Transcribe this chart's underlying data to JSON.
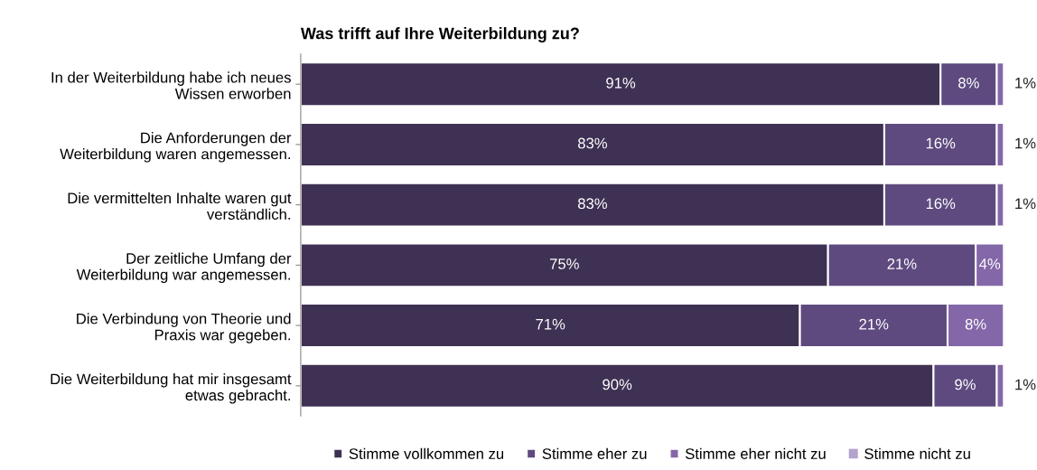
{
  "chart_data": {
    "type": "bar",
    "orientation": "horizontal",
    "stacked": true,
    "title": "Was trifft auf Ihre Weiterbildung zu?",
    "categories": [
      "In der Weiterbildung habe ich neues\nWissen erworben",
      "Die Anforderungen der\nWeiterbildung waren angemessen.",
      "Die vermittelten Inhalte waren gut\nverständlich.",
      "Der zeitliche Umfang der\nWeiterbildung war angemessen.",
      "Die Verbindung von Theorie und\nPraxis war gegeben.",
      "Die Weiterbildung hat mir insgesamt\netwas gebracht."
    ],
    "series": [
      {
        "name": "Stimme vollkommen zu",
        "color": "#3f3153",
        "values": [
          91,
          83,
          83,
          75,
          71,
          90
        ],
        "value_labels": [
          "91%",
          "83%",
          "83%",
          "75%",
          "71%",
          "90%"
        ]
      },
      {
        "name": "Stimme eher zu",
        "color": "#5e4a7f",
        "values": [
          8,
          16,
          16,
          21,
          21,
          9
        ],
        "value_labels": [
          "8%",
          "16%",
          "16%",
          "21%",
          "21%",
          "9%"
        ]
      },
      {
        "name": "Stimme eher nicht zu",
        "color": "#8467a8",
        "values": [
          1,
          1,
          1,
          4,
          8,
          1
        ],
        "value_labels": [
          "1%",
          "1%",
          "1%",
          "4%",
          "8%",
          "1%"
        ]
      },
      {
        "name": "Stimme nicht zu",
        "color": "#b4a3cc",
        "values": [
          null,
          null,
          null,
          null,
          null,
          null
        ]
      }
    ],
    "xlim": [
      0,
      100
    ],
    "tick_labels": "y",
    "grid": false,
    "legend": "bottom"
  }
}
